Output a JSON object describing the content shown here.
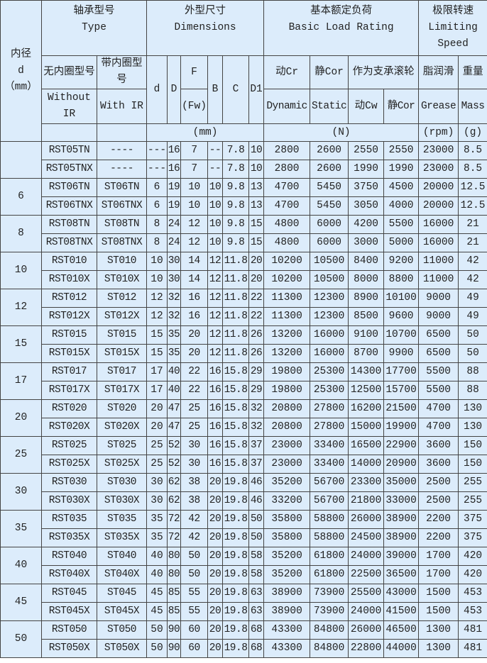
{
  "header": {
    "bore": {
      "zh": "内径",
      "sym": "d",
      "unit": "（mm）"
    },
    "type": {
      "zh": "轴承型号",
      "en": "Type",
      "without_ir_zh": "无内圈型号",
      "with_ir_zh": "带内圈型号",
      "without_ir_en": "Without IR",
      "with_ir_en": "With IR"
    },
    "dimensions": {
      "zh": "外型尺寸",
      "en": "Dimensions",
      "d": "d",
      "D": "D",
      "F": "F",
      "Fw": "(Fw)",
      "B": "B",
      "C": "C",
      "D1": "D1",
      "unit": "(mm)"
    },
    "load": {
      "zh": "基本额定负荷",
      "en": "Basic Load Rating",
      "dyn_zh": "动Cr",
      "stat_zh": "静Cor",
      "roller_zh": "作为支承滚轮",
      "dyn_en": "Dynamic",
      "stat_en": "Static",
      "cw": "动Cw",
      "cor": "静Cor",
      "unit": "(N)"
    },
    "speed": {
      "zh": "极限转速",
      "en": "Limiting Speed",
      "grease_zh": "脂润滑",
      "grease_en": "Grease",
      "unit": "(rpm)"
    },
    "mass": {
      "zh": "重量",
      "en": "Mass",
      "unit": "(g)"
    }
  },
  "groups": [
    {
      "bore": "",
      "rows": [
        [
          "RST05TN",
          "----",
          "---",
          "16",
          "7",
          "--",
          "7.8",
          "10",
          "2800",
          "2600",
          "2550",
          "2550",
          "23000",
          "8.5"
        ],
        [
          "RST05TNX",
          "----",
          "---",
          "16",
          "7",
          "--",
          "7.8",
          "10",
          "2800",
          "2600",
          "1990",
          "1990",
          "23000",
          "8.5"
        ]
      ]
    },
    {
      "bore": "6",
      "rows": [
        [
          "RST06TN",
          "ST06TN",
          "6",
          "19",
          "10",
          "10",
          "9.8",
          "13",
          "4700",
          "5450",
          "3750",
          "4500",
          "20000",
          "12.5"
        ],
        [
          "RST06TNX",
          "ST06TNX",
          "6",
          "19",
          "10",
          "10",
          "9.8",
          "13",
          "4700",
          "5450",
          "3050",
          "4000",
          "20000",
          "12.5"
        ]
      ]
    },
    {
      "bore": "8",
      "rows": [
        [
          "RST08TN",
          "ST08TN",
          "8",
          "24",
          "12",
          "10",
          "9.8",
          "15",
          "4800",
          "6000",
          "4200",
          "5500",
          "16000",
          "21"
        ],
        [
          "RST08TNX",
          "ST08TNX",
          "8",
          "24",
          "12",
          "10",
          "9.8",
          "15",
          "4800",
          "6000",
          "3000",
          "5000",
          "16000",
          "21"
        ]
      ]
    },
    {
      "bore": "10",
      "rows": [
        [
          "RST010",
          "ST010",
          "10",
          "30",
          "14",
          "12",
          "11.8",
          "20",
          "10200",
          "10500",
          "8400",
          "9200",
          "11000",
          "42"
        ],
        [
          "RST010X",
          "ST010X",
          "10",
          "30",
          "14",
          "12",
          "11.8",
          "20",
          "10200",
          "10500",
          "8000",
          "8800",
          "11000",
          "42"
        ]
      ]
    },
    {
      "bore": "12",
      "rows": [
        [
          "RST012",
          "ST012",
          "12",
          "32",
          "16",
          "12",
          "11.8",
          "22",
          "11300",
          "12300",
          "8900",
          "10100",
          "9000",
          "49"
        ],
        [
          "RST012X",
          "ST012X",
          "12",
          "32",
          "16",
          "12",
          "11.8",
          "22",
          "11300",
          "12300",
          "8500",
          "9600",
          "9000",
          "49"
        ]
      ]
    },
    {
      "bore": "15",
      "rows": [
        [
          "RST015",
          "ST015",
          "15",
          "35",
          "20",
          "12",
          "11.8",
          "26",
          "13200",
          "16000",
          "9100",
          "10700",
          "6500",
          "50"
        ],
        [
          "RST015X",
          "ST015X",
          "15",
          "35",
          "20",
          "12",
          "11.8",
          "26",
          "13200",
          "16000",
          "8700",
          "9900",
          "6500",
          "50"
        ]
      ]
    },
    {
      "bore": "17",
      "rows": [
        [
          "RST017",
          "ST017",
          "17",
          "40",
          "22",
          "16",
          "15.8",
          "29",
          "19800",
          "25300",
          "14300",
          "17700",
          "5500",
          "88"
        ],
        [
          "RST017X",
          "ST017X",
          "17",
          "40",
          "22",
          "16",
          "15.8",
          "29",
          "19800",
          "25300",
          "12500",
          "15700",
          "5500",
          "88"
        ]
      ]
    },
    {
      "bore": "20",
      "rows": [
        [
          "RST020",
          "ST020",
          "20",
          "47",
          "25",
          "16",
          "15.8",
          "32",
          "20800",
          "27800",
          "16200",
          "21500",
          "4700",
          "130"
        ],
        [
          "RST020X",
          "ST020X",
          "20",
          "47",
          "25",
          "16",
          "15.8",
          "32",
          "20800",
          "27800",
          "15000",
          "19900",
          "4700",
          "130"
        ]
      ]
    },
    {
      "bore": "25",
      "rows": [
        [
          "RST025",
          "ST025",
          "25",
          "52",
          "30",
          "16",
          "15.8",
          "37",
          "23000",
          "33400",
          "16500",
          "22900",
          "3600",
          "150"
        ],
        [
          "RST025X",
          "ST025X",
          "25",
          "52",
          "30",
          "16",
          "15.8",
          "37",
          "23000",
          "33400",
          "14000",
          "20900",
          "3600",
          "150"
        ]
      ]
    },
    {
      "bore": "30",
      "rows": [
        [
          "RST030",
          "ST030",
          "30",
          "62",
          "38",
          "20",
          "19.8",
          "46",
          "35200",
          "56700",
          "23300",
          "35000",
          "2500",
          "255"
        ],
        [
          "RST030X",
          "ST030X",
          "30",
          "62",
          "38",
          "20",
          "19.8",
          "46",
          "33200",
          "56700",
          "21800",
          "33000",
          "2500",
          "255"
        ]
      ]
    },
    {
      "bore": "35",
      "rows": [
        [
          "RST035",
          "ST035",
          "35",
          "72",
          "42",
          "20",
          "19.8",
          "50",
          "35800",
          "58800",
          "26000",
          "38900",
          "2200",
          "375"
        ],
        [
          "RST035X",
          "ST035X",
          "35",
          "72",
          "42",
          "20",
          "19.8",
          "50",
          "35800",
          "58800",
          "24500",
          "38900",
          "2200",
          "375"
        ]
      ]
    },
    {
      "bore": "40",
      "rows": [
        [
          "RST040",
          "ST040",
          "40",
          "80",
          "50",
          "20",
          "19.8",
          "58",
          "35200",
          "61800",
          "24000",
          "39000",
          "1700",
          "420"
        ],
        [
          "RST040X",
          "ST040X",
          "40",
          "80",
          "50",
          "20",
          "19.8",
          "58",
          "35200",
          "61800",
          "22500",
          "36500",
          "1700",
          "420"
        ]
      ]
    },
    {
      "bore": "45",
      "rows": [
        [
          "RST045",
          "ST045",
          "45",
          "85",
          "55",
          "20",
          "19.8",
          "63",
          "38900",
          "73900",
          "25500",
          "43000",
          "1500",
          "453"
        ],
        [
          "RST045X",
          "ST045X",
          "45",
          "85",
          "55",
          "20",
          "19.8",
          "63",
          "38900",
          "73900",
          "24000",
          "41500",
          "1500",
          "453"
        ]
      ]
    },
    {
      "bore": "50",
      "rows": [
        [
          "RST050",
          "ST050",
          "50",
          "90",
          "60",
          "20",
          "19.8",
          "68",
          "43300",
          "84800",
          "26000",
          "46500",
          "1300",
          "481"
        ],
        [
          "RST050X",
          "ST050X",
          "50",
          "90",
          "60",
          "20",
          "19.8",
          "68",
          "43300",
          "84800",
          "22800",
          "44000",
          "1300",
          "481"
        ]
      ]
    }
  ]
}
